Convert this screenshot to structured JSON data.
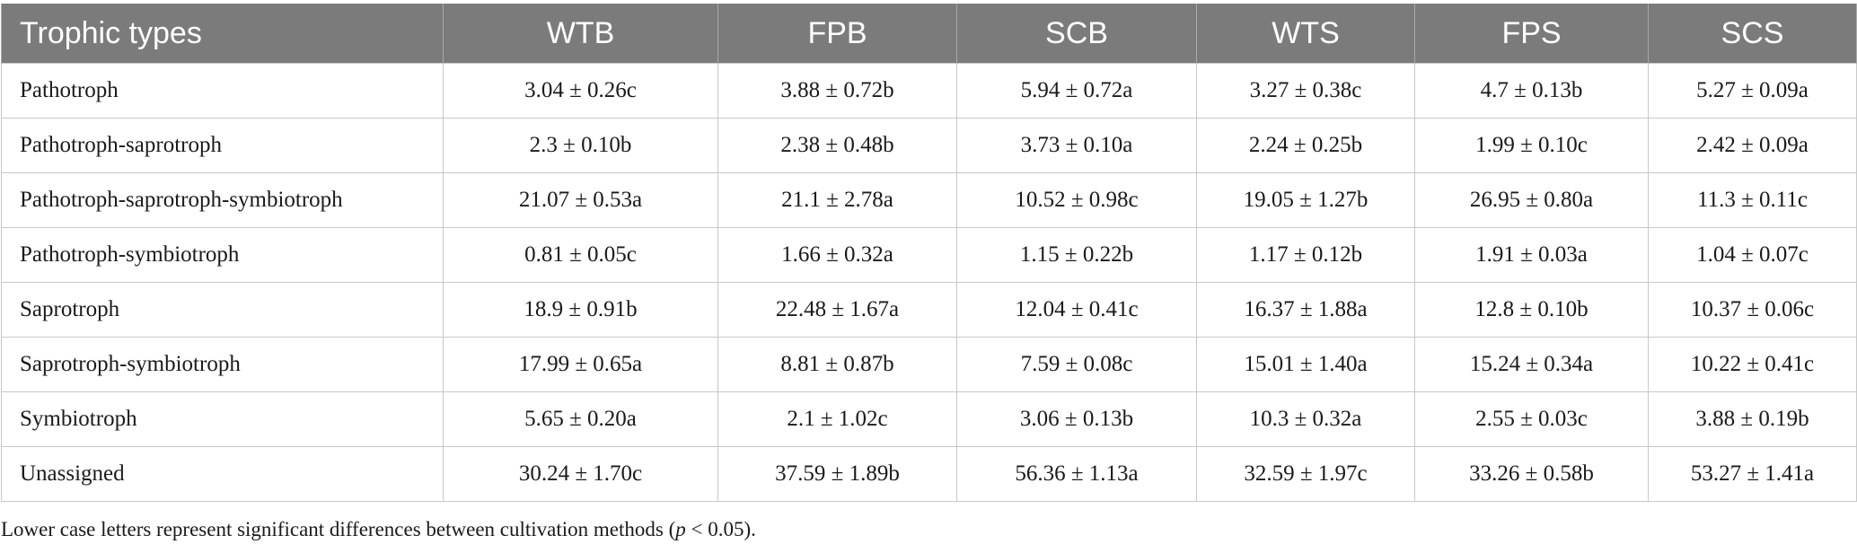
{
  "table": {
    "headers": [
      "Trophic types",
      "WTB",
      "FPB",
      "SCB",
      "WTS",
      "FPS",
      "SCS"
    ],
    "rows": [
      [
        "Pathotroph",
        "3.04 ± 0.26c",
        "3.88 ± 0.72b",
        "5.94 ± 0.72a",
        "3.27 ± 0.38c",
        "4.7 ± 0.13b",
        "5.27 ± 0.09a"
      ],
      [
        "Pathotroph-saprotroph",
        "2.3 ± 0.10b",
        "2.38 ± 0.48b",
        "3.73 ± 0.10a",
        "2.24 ± 0.25b",
        "1.99 ± 0.10c",
        "2.42 ± 0.09a"
      ],
      [
        "Pathotroph-saprotroph-symbiotroph",
        "21.07 ± 0.53a",
        "21.1 ± 2.78a",
        "10.52 ± 0.98c",
        "19.05 ± 1.27b",
        "26.95 ± 0.80a",
        "11.3 ± 0.11c"
      ],
      [
        "Pathotroph-symbiotroph",
        "0.81 ± 0.05c",
        "1.66 ± 0.32a",
        "1.15 ± 0.22b",
        "1.17 ± 0.12b",
        "1.91 ± 0.03a",
        "1.04 ± 0.07c"
      ],
      [
        "Saprotroph",
        "18.9 ± 0.91b",
        "22.48 ± 1.67a",
        "12.04 ± 0.41c",
        "16.37 ± 1.88a",
        "12.8 ± 0.10b",
        "10.37 ± 0.06c"
      ],
      [
        "Saprotroph-symbiotroph",
        "17.99 ± 0.65a",
        "8.81 ± 0.87b",
        "7.59 ± 0.08c",
        "15.01 ± 1.40a",
        "15.24 ± 0.34a",
        "10.22 ± 0.41c"
      ],
      [
        "Symbiotroph",
        "5.65 ± 0.20a",
        "2.1 ± 1.02c",
        "3.06 ± 0.13b",
        "10.3 ± 0.32a",
        "2.55 ± 0.03c",
        "3.88 ± 0.19b"
      ],
      [
        "Unassigned",
        "30.24 ± 1.70c",
        "37.59 ± 1.89b",
        "56.36 ± 1.13a",
        "32.59 ± 1.97c",
        "33.26 ± 0.58b",
        "53.27 ± 1.41a"
      ]
    ]
  },
  "footnote": {
    "before": "Lower case letters represent significant differences between cultivation methods (",
    "italic": "p",
    "after": " < 0.05)."
  },
  "colors": {
    "header_bg": "#7b7b7b",
    "header_text": "#ffffff",
    "grid": "#c8c8c8",
    "body_text": "#1a1a1a"
  }
}
